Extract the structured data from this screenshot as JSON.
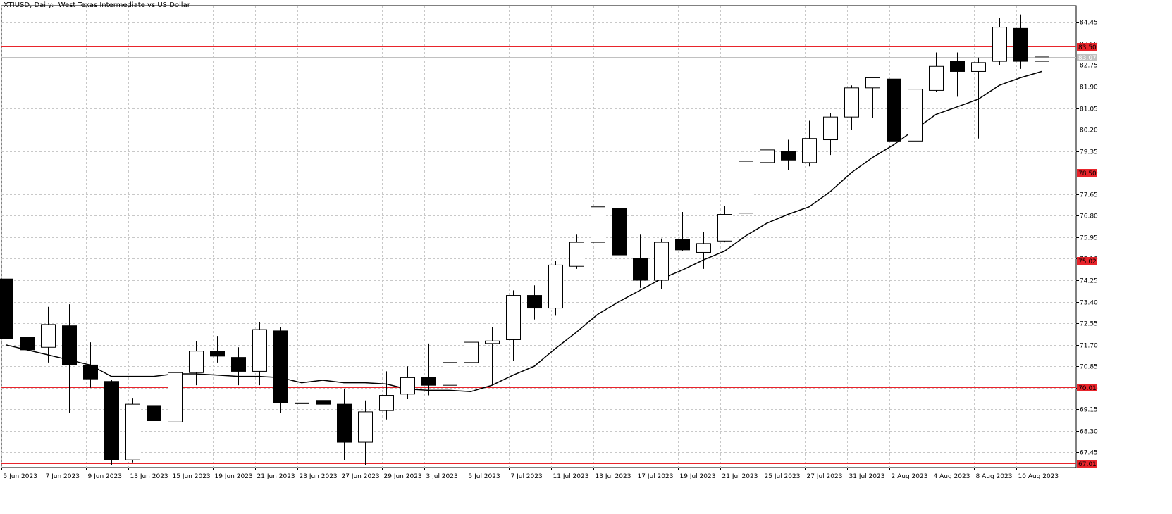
{
  "title": "XTIUSD, Daily:  West Texas Intermediate vs US Dollar",
  "colors": {
    "background": "#ffffff",
    "grid": "#c8c8c8",
    "candle_border": "#000000",
    "bull_fill": "#ffffff",
    "bear_fill": "#000000",
    "moving_average": "#000000",
    "horizontal_level": "#e8242b",
    "level_label_bg": "#e8242b",
    "current_price_bg": "#c0c0c0",
    "current_price_line": "#c0c0c0"
  },
  "chart_data": {
    "type": "candlestick",
    "title": "XTIUSD, Daily:  West Texas Intermediate vs US Dollar",
    "ylim": [
      66.85,
      85.1
    ],
    "y_ticks": [
      "84.45",
      "83.60",
      "82.75",
      "81.90",
      "81.05",
      "80.20",
      "79.35",
      "78.50",
      "77.65",
      "76.80",
      "75.95",
      "75.10",
      "74.25",
      "73.40",
      "72.55",
      "71.70",
      "70.85",
      "70.00",
      "69.15",
      "68.30",
      "67.45"
    ],
    "x_labels": [
      "5 Jun 2023",
      "7 Jun 2023",
      "9 Jun 2023",
      "13 Jun 2023",
      "15 Jun 2023",
      "19 Jun 2023",
      "21 Jun 2023",
      "23 Jun 2023",
      "27 Jun 2023",
      "29 Jun 2023",
      "3 Jul 2023",
      "5 Jul 2023",
      "7 Jul 2023",
      "11 Jul 2023",
      "13 Jul 2023",
      "17 Jul 2023",
      "19 Jul 2023",
      "21 Jul 2023",
      "25 Jul 2023",
      "27 Jul 2023",
      "31 Jul 2023",
      "2 Aug 2023",
      "4 Aug 2023",
      "8 Aug 2023",
      "10 Aug 2023"
    ],
    "grid": true,
    "horizontal_levels": [
      "83.50",
      "78.50",
      "75.02",
      "70.01",
      "67.01"
    ],
    "current_price": "83.07",
    "candles": [
      {
        "o": 74.3,
        "h": 74.3,
        "l": 71.9,
        "c": 71.95
      },
      {
        "o": 72.0,
        "h": 72.3,
        "l": 70.7,
        "c": 71.5
      },
      {
        "o": 71.6,
        "h": 73.2,
        "l": 71.0,
        "c": 72.5
      },
      {
        "o": 72.45,
        "h": 73.3,
        "l": 69.0,
        "c": 70.9
      },
      {
        "o": 70.9,
        "h": 71.8,
        "l": 70.0,
        "c": 70.35
      },
      {
        "o": 70.25,
        "h": 70.3,
        "l": 66.95,
        "c": 67.15
      },
      {
        "o": 67.15,
        "h": 69.6,
        "l": 67.05,
        "c": 69.35
      },
      {
        "o": 69.3,
        "h": 70.5,
        "l": 68.45,
        "c": 68.7
      },
      {
        "o": 68.65,
        "h": 70.85,
        "l": 68.15,
        "c": 70.6
      },
      {
        "o": 70.6,
        "h": 71.85,
        "l": 70.1,
        "c": 71.45
      },
      {
        "o": 71.45,
        "h": 72.05,
        "l": 71.0,
        "c": 71.25
      },
      {
        "o": 71.2,
        "h": 71.6,
        "l": 70.1,
        "c": 70.65
      },
      {
        "o": 70.65,
        "h": 72.6,
        "l": 70.1,
        "c": 72.3
      },
      {
        "o": 72.25,
        "h": 72.4,
        "l": 69.0,
        "c": 69.4
      },
      {
        "o": 69.4,
        "h": 69.4,
        "l": 67.25,
        "c": 69.4
      },
      {
        "o": 69.5,
        "h": 69.95,
        "l": 68.55,
        "c": 69.35
      },
      {
        "o": 69.35,
        "h": 69.95,
        "l": 67.15,
        "c": 67.85
      },
      {
        "o": 67.85,
        "h": 69.5,
        "l": 66.95,
        "c": 69.05
      },
      {
        "o": 69.1,
        "h": 70.65,
        "l": 68.75,
        "c": 69.7
      },
      {
        "o": 69.75,
        "h": 70.85,
        "l": 69.55,
        "c": 70.4
      },
      {
        "o": 70.4,
        "h": 71.75,
        "l": 69.7,
        "c": 70.1
      },
      {
        "o": 70.1,
        "h": 71.3,
        "l": 69.85,
        "c": 71.0
      },
      {
        "o": 71.0,
        "h": 72.25,
        "l": 70.3,
        "c": 71.8
      },
      {
        "o": 71.75,
        "h": 72.4,
        "l": 70.1,
        "c": 71.85
      },
      {
        "o": 71.9,
        "h": 73.85,
        "l": 71.05,
        "c": 73.65
      },
      {
        "o": 73.65,
        "h": 74.05,
        "l": 72.7,
        "c": 73.15
      },
      {
        "o": 73.15,
        "h": 75.0,
        "l": 72.85,
        "c": 74.85
      },
      {
        "o": 74.8,
        "h": 76.05,
        "l": 74.7,
        "c": 75.75
      },
      {
        "o": 75.75,
        "h": 77.3,
        "l": 75.3,
        "c": 77.15
      },
      {
        "o": 77.1,
        "h": 77.3,
        "l": 75.2,
        "c": 75.25
      },
      {
        "o": 75.1,
        "h": 76.05,
        "l": 73.95,
        "c": 74.25
      },
      {
        "o": 74.25,
        "h": 75.9,
        "l": 73.9,
        "c": 75.75
      },
      {
        "o": 75.85,
        "h": 76.95,
        "l": 75.4,
        "c": 75.45
      },
      {
        "o": 75.35,
        "h": 76.15,
        "l": 74.7,
        "c": 75.7
      },
      {
        "o": 75.8,
        "h": 77.2,
        "l": 75.75,
        "c": 76.85
      },
      {
        "o": 76.9,
        "h": 79.3,
        "l": 76.5,
        "c": 78.95
      },
      {
        "o": 78.9,
        "h": 79.9,
        "l": 78.35,
        "c": 79.4
      },
      {
        "o": 79.35,
        "h": 79.8,
        "l": 78.6,
        "c": 79.0
      },
      {
        "o": 78.9,
        "h": 80.55,
        "l": 78.75,
        "c": 79.85
      },
      {
        "o": 79.8,
        "h": 80.85,
        "l": 79.2,
        "c": 80.7
      },
      {
        "o": 80.7,
        "h": 81.95,
        "l": 80.2,
        "c": 81.85
      },
      {
        "o": 81.85,
        "h": 82.25,
        "l": 80.65,
        "c": 82.25
      },
      {
        "o": 82.2,
        "h": 82.4,
        "l": 79.25,
        "c": 79.75
      },
      {
        "o": 79.75,
        "h": 81.95,
        "l": 78.75,
        "c": 81.8
      },
      {
        "o": 81.75,
        "h": 83.25,
        "l": 81.7,
        "c": 82.7
      },
      {
        "o": 82.9,
        "h": 83.25,
        "l": 81.5,
        "c": 82.5
      },
      {
        "o": 82.5,
        "h": 83.05,
        "l": 79.85,
        "c": 82.85
      },
      {
        "o": 82.9,
        "h": 84.6,
        "l": 82.75,
        "c": 84.25
      },
      {
        "o": 84.2,
        "h": 84.75,
        "l": 82.6,
        "c": 82.9
      },
      {
        "o": 82.9,
        "h": 83.75,
        "l": 82.25,
        "c": 83.07
      }
    ],
    "moving_average": [
      71.7,
      71.5,
      71.3,
      71.1,
      70.9,
      70.45,
      70.45,
      70.45,
      70.55,
      70.55,
      70.5,
      70.45,
      70.45,
      70.4,
      70.2,
      70.3,
      70.2,
      70.2,
      70.15,
      69.95,
      69.9,
      69.9,
      69.85,
      70.1,
      70.5,
      70.85,
      71.55,
      72.2,
      72.9,
      73.4,
      73.85,
      74.3,
      74.65,
      75.05,
      75.4,
      76.0,
      76.5,
      76.85,
      77.15,
      77.75,
      78.5,
      79.1,
      79.6,
      80.2,
      80.8,
      81.1,
      81.4,
      81.95,
      82.25,
      82.5
    ]
  }
}
